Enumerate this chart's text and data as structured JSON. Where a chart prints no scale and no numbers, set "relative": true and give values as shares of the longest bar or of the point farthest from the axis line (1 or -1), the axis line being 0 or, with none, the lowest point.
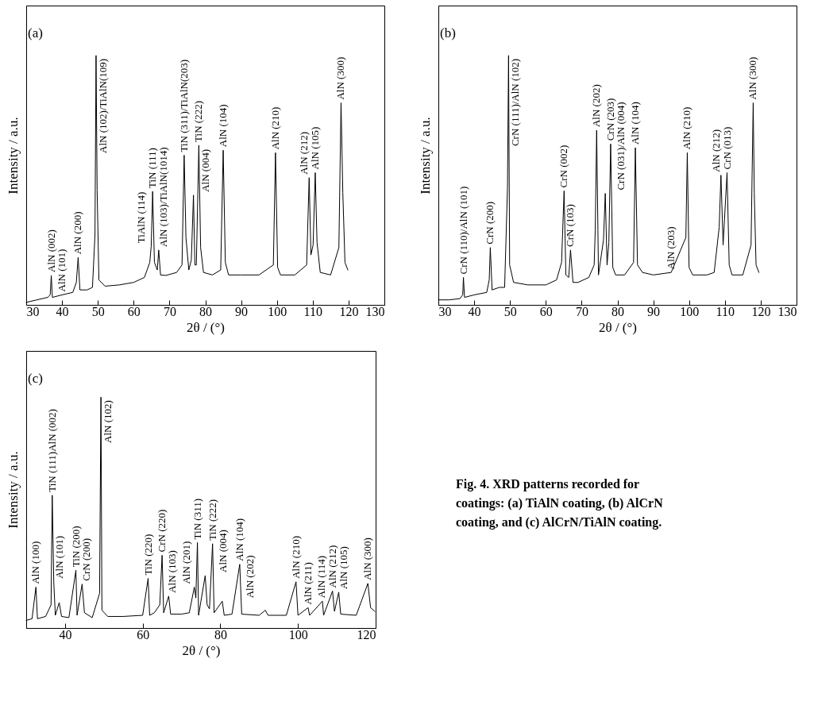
{
  "chart_data": [
    {
      "type": "line",
      "title": "(a)",
      "xlabel": "2θ / (°)",
      "ylabel": "Intensity / a.u.",
      "relative": true,
      "xlim": [
        30,
        130
      ],
      "xticks": [
        30,
        40,
        50,
        60,
        70,
        80,
        90,
        100,
        110,
        120,
        130
      ],
      "grid": false,
      "series": [
        {
          "color": "#000000",
          "x": [
            30,
            33,
            36,
            36.7,
            37.0,
            37.3,
            40,
            43,
            44.0,
            44.5,
            45.0,
            47,
            48.5,
            49.2,
            49.5,
            49.8,
            50.3,
            52,
            56,
            60,
            63,
            64.5,
            64.9,
            65.3,
            65.8,
            66.6,
            67.0,
            67.5,
            69,
            72,
            73.5,
            74.1,
            74.6,
            75.4,
            76.1,
            76.7,
            77.1,
            77.5,
            78.2,
            78.7,
            79.5,
            82,
            84.3,
            85.0,
            85.6,
            86.5,
            90,
            95,
            99.0,
            99.6,
            100.2,
            101,
            105,
            108.3,
            109.0,
            109.5,
            110.1,
            110.7,
            111.2,
            112.1,
            115,
            117.3,
            117.9,
            118.4,
            119.0,
            119.8
          ],
          "values": [
            0.01,
            0.02,
            0.03,
            0.04,
            0.118,
            0.03,
            0.04,
            0.05,
            0.09,
            0.19,
            0.06,
            0.06,
            0.07,
            0.28,
            1.0,
            0.46,
            0.1,
            0.075,
            0.08,
            0.09,
            0.11,
            0.17,
            0.235,
            0.455,
            0.17,
            0.14,
            0.22,
            0.12,
            0.118,
            0.13,
            0.16,
            0.6,
            0.27,
            0.14,
            0.18,
            0.44,
            0.16,
            0.16,
            0.64,
            0.23,
            0.13,
            0.12,
            0.14,
            0.62,
            0.17,
            0.12,
            0.12,
            0.12,
            0.16,
            0.61,
            0.15,
            0.12,
            0.12,
            0.16,
            0.51,
            0.2,
            0.24,
            0.53,
            0.25,
            0.13,
            0.12,
            0.23,
            0.81,
            0.45,
            0.17,
            0.14
          ]
        }
      ],
      "annotations": [
        {
          "text": "AlN (002)",
          "x": 37.0,
          "y": 0.118
        },
        {
          "text": "AlN (101)",
          "x": 40,
          "y": 0.04
        },
        {
          "text": "AlN (200)",
          "x": 44.5,
          "y": 0.19
        },
        {
          "text": "AlN (102)/TiAlN(109)",
          "x": 49.5,
          "y": 1.0
        },
        {
          "text": "TiAlN (114)",
          "x": 64.9,
          "y": 0.235
        },
        {
          "text": "TiN (111)",
          "x": 65.3,
          "y": 0.455
        },
        {
          "text": "AlN (103)/TiAlN(1014)",
          "x": 67.0,
          "y": 0.22
        },
        {
          "text": "AlN (004)",
          "x": 76.7,
          "y": 0.44
        },
        {
          "text": "TiN (311)/TiAlN(203)",
          "x": 74.1,
          "y": 0.6
        },
        {
          "text": "TiN (222)",
          "x": 78.2,
          "y": 0.64
        },
        {
          "text": "AlN (104)",
          "x": 85.0,
          "y": 0.62
        },
        {
          "text": "AlN (210)",
          "x": 99.6,
          "y": 0.61
        },
        {
          "text": "AlN (212)",
          "x": 109.0,
          "y": 0.51
        },
        {
          "text": "AlN (105)",
          "x": 110.7,
          "y": 0.53
        },
        {
          "text": "AlN (300)",
          "x": 117.9,
          "y": 0.81
        }
      ]
    },
    {
      "type": "line",
      "title": "(b)",
      "xlabel": "2θ / (°)",
      "ylabel": "Intensity / a.u.",
      "relative": true,
      "xlim": [
        30,
        130
      ],
      "xticks": [
        30,
        40,
        50,
        60,
        70,
        80,
        90,
        100,
        110,
        120,
        130
      ],
      "grid": false,
      "series": [
        {
          "color": "#000000",
          "x": [
            30,
            33,
            36,
            36.8,
            37.0,
            37.3,
            40,
            43.5,
            44.2,
            44.5,
            45.0,
            47,
            48.5,
            49.3,
            49.6,
            49.9,
            51,
            55,
            60,
            63,
            64.4,
            65.1,
            65.6,
            66.4,
            66.9,
            67.6,
            69,
            72,
            73.5,
            73.8,
            74.2,
            74.7,
            76.1,
            76.6,
            77.1,
            77.6,
            78.1,
            78.7,
            79.5,
            82,
            84.5,
            85.0,
            85.6,
            87,
            90,
            95,
            99.1,
            99.5,
            100,
            101,
            105,
            107,
            108.4,
            108.9,
            109.5,
            110.6,
            111.2,
            112,
            115,
            117.3,
            117.9,
            118.2,
            118.7,
            119.5
          ],
          "values": [
            0.02,
            0.02,
            0.025,
            0.04,
            0.11,
            0.03,
            0.04,
            0.05,
            0.1,
            0.23,
            0.06,
            0.07,
            0.07,
            0.47,
            1.0,
            0.16,
            0.09,
            0.08,
            0.08,
            0.1,
            0.17,
            0.457,
            0.12,
            0.11,
            0.22,
            0.09,
            0.09,
            0.11,
            0.16,
            0.3,
            0.7,
            0.12,
            0.26,
            0.447,
            0.16,
            0.25,
            0.645,
            0.15,
            0.12,
            0.12,
            0.17,
            0.63,
            0.16,
            0.13,
            0.12,
            0.13,
            0.27,
            0.61,
            0.15,
            0.12,
            0.12,
            0.13,
            0.31,
            0.52,
            0.24,
            0.53,
            0.16,
            0.12,
            0.12,
            0.24,
            0.81,
            0.45,
            0.16,
            0.13
          ]
        }
      ],
      "annotations": [
        {
          "text": "CrN (110)/AlN (101)",
          "x": 37.0,
          "y": 0.11
        },
        {
          "text": "CrN (200)",
          "x": 44.5,
          "y": 0.23
        },
        {
          "text": "CrN (111)/AlN (102)",
          "x": 49.6,
          "y": 1.0
        },
        {
          "text": "CrN (002)",
          "x": 65.1,
          "y": 0.457
        },
        {
          "text": "CrN (103)",
          "x": 66.9,
          "y": 0.22
        },
        {
          "text": "AlN (202)",
          "x": 74.2,
          "y": 0.7
        },
        {
          "text": "CrN (031)/AlN (004)",
          "x": 76.6,
          "y": 0.447
        },
        {
          "text": "CrN (203)",
          "x": 78.1,
          "y": 0.645
        },
        {
          "text": "AlN (104)",
          "x": 85.0,
          "y": 0.63
        },
        {
          "text": "AlN (203)",
          "x": 95,
          "y": 0.13
        },
        {
          "text": "AlN (210)",
          "x": 99.5,
          "y": 0.61
        },
        {
          "text": "AlN (212)",
          "x": 108.9,
          "y": 0.52
        },
        {
          "text": "CrN (013)",
          "x": 110.6,
          "y": 0.53
        },
        {
          "text": "AlN (300)",
          "x": 117.9,
          "y": 0.81
        }
      ]
    },
    {
      "type": "line",
      "title": "(c)",
      "xlabel": "2θ / (°)",
      "ylabel": "Intensity / a.u.",
      "relative": true,
      "xlim": [
        30,
        120
      ],
      "xticks": [
        40,
        60,
        80,
        100,
        120
      ],
      "grid": false,
      "series": [
        {
          "color": "#000000",
          "x": [
            30,
            31.5,
            32.5,
            32.9,
            35,
            36.4,
            36.7,
            37.1,
            37.5,
            38.5,
            39.1,
            41,
            42.8,
            43.1,
            44.4,
            45.0,
            47,
            48.9,
            49.25,
            49.5,
            51,
            55,
            60,
            61.4,
            61.8,
            63,
            64.4,
            65.0,
            65.4,
            66.7,
            67.2,
            70,
            72,
            73.3,
            73.7,
            74.1,
            74.4,
            76.1,
            76.6,
            77.2,
            78.0,
            78.4,
            80.5,
            81.0,
            83,
            85.0,
            85.5,
            90,
            91.6,
            92.3,
            97,
            99.5,
            100.0,
            102.6,
            103.0,
            106.3,
            106.6,
            108.9,
            109.4,
            110.5,
            111.0,
            115,
            118.0,
            118.7,
            119.8
          ],
          "values": [
            0.033,
            0.04,
            0.177,
            0.04,
            0.05,
            0.1,
            0.575,
            0.2,
            0.055,
            0.11,
            0.05,
            0.045,
            0.25,
            0.055,
            0.19,
            0.066,
            0.045,
            0.15,
            1.0,
            0.077,
            0.05,
            0.05,
            0.055,
            0.215,
            0.055,
            0.066,
            0.1,
            0.315,
            0.066,
            0.138,
            0.06,
            0.06,
            0.066,
            0.177,
            0.13,
            0.37,
            0.055,
            0.227,
            0.1,
            0.083,
            0.365,
            0.066,
            0.116,
            0.055,
            0.06,
            0.276,
            0.06,
            0.055,
            0.077,
            0.055,
            0.055,
            0.2,
            0.055,
            0.088,
            0.055,
            0.116,
            0.055,
            0.16,
            0.072,
            0.155,
            0.06,
            0.055,
            0.193,
            0.088,
            0.072
          ]
        }
      ],
      "annotations": [
        {
          "text": "AlN (100)",
          "x": 32.5,
          "y": 0.177
        },
        {
          "text": "TiN (111)AlN (002)",
          "x": 36.7,
          "y": 0.575
        },
        {
          "text": "AlN (101)",
          "x": 38.5,
          "y": 0.11
        },
        {
          "text": "TiN (200)",
          "x": 42.8,
          "y": 0.25
        },
        {
          "text": "CrN (200)",
          "x": 44.4,
          "y": 0.19
        },
        {
          "text": "AlN (102)",
          "x": 49.25,
          "y": 1.0
        },
        {
          "text": "TiN (220)",
          "x": 61.4,
          "y": 0.215
        },
        {
          "text": "CrN (220)",
          "x": 65.0,
          "y": 0.315
        },
        {
          "text": "AlN (103)",
          "x": 66.7,
          "y": 0.138
        },
        {
          "text": "AlN (201)",
          "x": 73.3,
          "y": 0.177
        },
        {
          "text": "TiN (311)",
          "x": 74.1,
          "y": 0.37
        },
        {
          "text": "AlN (004)",
          "x": 76.1,
          "y": 0.227
        },
        {
          "text": "TiN (222)",
          "x": 78.0,
          "y": 0.365
        },
        {
          "text": "AlN (202)",
          "x": 80.5,
          "y": 0.116
        },
        {
          "text": "AlN (104)",
          "x": 85.0,
          "y": 0.276
        },
        {
          "text": "AlN (210)",
          "x": 99.5,
          "y": 0.2
        },
        {
          "text": "AlN (211)",
          "x": 102.6,
          "y": 0.088
        },
        {
          "text": "AlN (114)",
          "x": 106.3,
          "y": 0.116
        },
        {
          "text": "AlN (212)",
          "x": 108.9,
          "y": 0.16
        },
        {
          "text": "AlN (105)",
          "x": 110.5,
          "y": 0.155
        },
        {
          "text": "AlN (300)",
          "x": 118.0,
          "y": 0.193
        }
      ]
    },
    {
      "type": "other",
      "annotations": [
        "Fig. 4. XRD patterns recorded for coatings: (a) TiAlN coating, (b) AlCrN coating, and (c) AlCrN/TiAlN coating."
      ]
    }
  ]
}
